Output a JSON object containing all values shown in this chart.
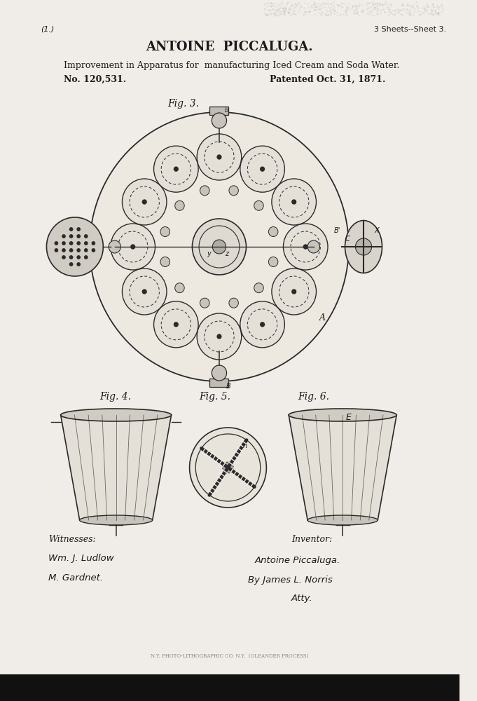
{
  "bg_color": "#f0ede8",
  "title_name": "ANTOINE  PICCALUGA.",
  "subtitle": "Improvement in Apparatus for  manufacturing Iced Cream and Soda Water.",
  "patent_no": "No. 120,531.",
  "patent_date": "Patented Oct. 31, 1871.",
  "sheet_label": "3 Sheets--Sheet 3.",
  "corner_label": "(1.)",
  "fig3_label": "Fig. 3.",
  "fig4_label": "Fig. 4.",
  "fig5_label": "Fig. 5.",
  "fig6_label": "Fig. 6.",
  "witnesses_label": "Witnesses:",
  "witness1": "Wm. J. Ludlow",
  "witness2": "M. Gardnet.",
  "inventor_label": "Inventor:",
  "inventor_sig": "Antoine Piccaluga.",
  "attorney_sig": "By James L. Norris",
  "attorney_title": "Atty.",
  "printer_text": "N.Y. PHOTO-LITHOGRAPHIC CO. N.Y.  (OLEANDER PROCESS)",
  "text_color": "#1a1a1a",
  "line_color": "#2a2a2a",
  "faint_color": "#888888"
}
